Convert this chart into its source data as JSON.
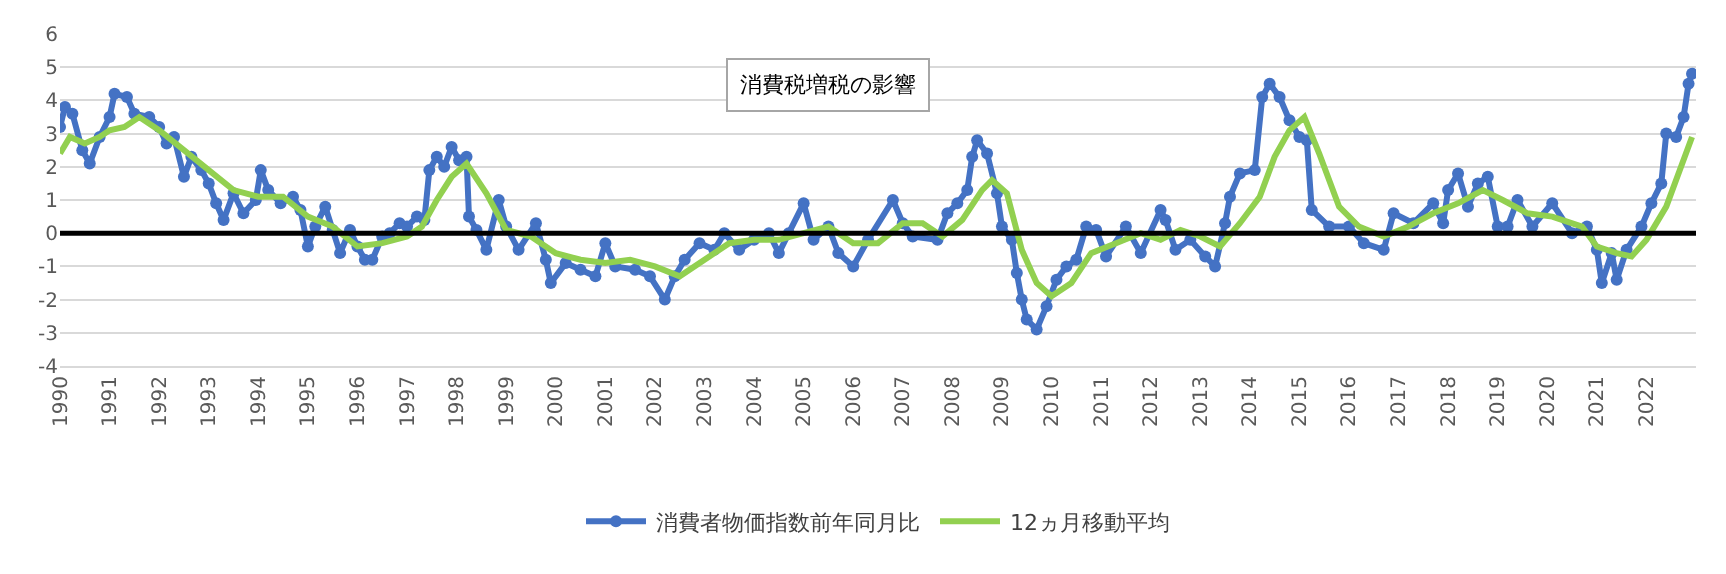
{
  "chart_data": {
    "type": "line",
    "annotations": [
      "消費税増税の影響"
    ],
    "xlim": [
      1990,
      2023
    ],
    "xticks": [
      1990,
      1991,
      1992,
      1993,
      1994,
      1995,
      1996,
      1997,
      1998,
      1999,
      2000,
      2001,
      2002,
      2003,
      2004,
      2005,
      2006,
      2007,
      2008,
      2009,
      2010,
      2011,
      2012,
      2013,
      2014,
      2015,
      2016,
      2017,
      2018,
      2019,
      2020,
      2021,
      2022
    ],
    "ylim": [
      -4,
      6
    ],
    "yticks": [
      -4,
      -3,
      -2,
      -1,
      0,
      1,
      2,
      3,
      4,
      5,
      6
    ],
    "grid": "y",
    "legend": "bottom",
    "ref_lines": [
      {
        "axis": "y",
        "value": 0,
        "color": "#000000"
      }
    ],
    "series": [
      {
        "name": "消費者物価指数前年同月比",
        "color": "#4472c4",
        "marker": "circle",
        "x": [
          1990.0,
          1990.1,
          1990.25,
          1990.45,
          1990.6,
          1990.8,
          1991.0,
          1991.1,
          1991.35,
          1991.5,
          1991.8,
          1992.0,
          1992.15,
          1992.3,
          1992.5,
          1992.65,
          1992.85,
          1993.0,
          1993.15,
          1993.3,
          1993.5,
          1993.7,
          1993.95,
          1994.05,
          1994.2,
          1994.45,
          1994.7,
          1994.85,
          1995.0,
          1995.15,
          1995.35,
          1995.5,
          1995.65,
          1995.85,
          1996.0,
          1996.15,
          1996.3,
          1996.5,
          1996.65,
          1996.85,
          1997.0,
          1997.2,
          1997.35,
          1997.45,
          1997.6,
          1997.75,
          1997.9,
          1998.05,
          1998.2,
          1998.25,
          1998.4,
          1998.6,
          1998.85,
          1999.0,
          1999.25,
          1999.6,
          1999.8,
          1999.9,
          2000.2,
          2000.5,
          2000.8,
          2001.0,
          2001.2,
          2001.6,
          2001.9,
          2002.2,
          2002.4,
          2002.6,
          2002.9,
          2003.2,
          2003.4,
          2003.7,
          2004.0,
          2004.3,
          2004.5,
          2004.7,
          2005.0,
          2005.2,
          2005.5,
          2005.7,
          2006.0,
          2006.3,
          2006.8,
          2007.0,
          2007.2,
          2007.7,
          2007.9,
          2008.1,
          2008.3,
          2008.4,
          2008.5,
          2008.7,
          2008.9,
          2009.0,
          2009.2,
          2009.3,
          2009.4,
          2009.5,
          2009.7,
          2009.9,
          2010.1,
          2010.3,
          2010.5,
          2010.7,
          2010.9,
          2011.1,
          2011.5,
          2011.8,
          2012.2,
          2012.3,
          2012.5,
          2012.8,
          2013.1,
          2013.3,
          2013.5,
          2013.6,
          2013.8,
          2014.1,
          2014.25,
          2014.4,
          2014.6,
          2014.8,
          2015.0,
          2015.15,
          2015.25,
          2015.6,
          2016.0,
          2016.3,
          2016.7,
          2016.9,
          2017.3,
          2017.7,
          2017.9,
          2018.0,
          2018.2,
          2018.4,
          2018.6,
          2018.8,
          2019.0,
          2019.2,
          2019.4,
          2019.7,
          2020.1,
          2020.5,
          2020.8,
          2021.0,
          2021.1,
          2021.3,
          2021.4,
          2021.6,
          2021.9,
          2022.1,
          2022.3,
          2022.4,
          2022.6,
          2022.75,
          2022.85,
          2022.92
        ],
        "values": [
          3.2,
          3.8,
          3.6,
          2.5,
          2.1,
          2.9,
          3.5,
          4.2,
          4.1,
          3.6,
          3.5,
          3.2,
          2.7,
          2.9,
          1.7,
          2.3,
          1.9,
          1.5,
          0.9,
          0.4,
          1.2,
          0.6,
          1.0,
          1.9,
          1.3,
          0.9,
          1.1,
          0.7,
          -0.4,
          0.2,
          0.8,
          0.1,
          -0.6,
          0.1,
          -0.4,
          -0.8,
          -0.8,
          -0.1,
          0.0,
          0.3,
          0.2,
          0.5,
          0.4,
          1.9,
          2.3,
          2.0,
          2.6,
          2.2,
          2.3,
          0.5,
          0.1,
          -0.5,
          1.0,
          0.2,
          -0.5,
          0.3,
          -0.8,
          -1.5,
          -0.9,
          -1.1,
          -1.3,
          -0.3,
          -1.0,
          -1.1,
          -1.3,
          -2.0,
          -1.3,
          -0.8,
          -0.3,
          -0.5,
          0.0,
          -0.5,
          -0.2,
          0.0,
          -0.6,
          0.0,
          0.9,
          -0.2,
          0.2,
          -0.6,
          -1.0,
          -0.2,
          1.0,
          0.3,
          -0.1,
          -0.2,
          0.6,
          0.9,
          1.3,
          2.3,
          2.8,
          2.4,
          1.2,
          0.2,
          -0.2,
          -1.2,
          -2.0,
          -2.6,
          -2.9,
          -2.2,
          -1.4,
          -1.0,
          -0.8,
          0.2,
          0.1,
          -0.7,
          0.2,
          -0.6,
          0.7,
          0.4,
          -0.5,
          -0.2,
          -0.7,
          -1.0,
          0.3,
          1.1,
          1.8,
          1.9,
          4.1,
          4.5,
          4.1,
          3.4,
          2.9,
          2.8,
          0.7,
          0.2,
          0.2,
          -0.3,
          -0.5,
          0.6,
          0.3,
          0.9,
          0.3,
          1.3,
          1.8,
          0.8,
          1.5,
          1.7,
          0.2,
          0.2,
          1.0,
          0.2,
          0.9,
          0.0,
          0.2,
          -0.5,
          -1.5,
          -0.6,
          -1.4,
          -0.5,
          0.2,
          0.9,
          1.5,
          3.0,
          2.9,
          3.5,
          4.5,
          4.8
        ]
      },
      {
        "name": "12ヵ月移動平均",
        "color": "#92d050",
        "marker": "none",
        "x": [
          1990.0,
          1990.2,
          1990.5,
          1990.8,
          1991.0,
          1991.3,
          1991.6,
          1992.0,
          1992.5,
          1993.0,
          1993.5,
          1994.0,
          1994.5,
          1995.0,
          1995.5,
          1996.0,
          1996.5,
          1997.0,
          1997.3,
          1997.6,
          1997.9,
          1998.2,
          1998.6,
          1999.0,
          1999.5,
          2000.0,
          2000.5,
          2001.0,
          2001.5,
          2002.0,
          2002.5,
          2003.0,
          2003.5,
          2004.0,
          2004.5,
          2005.0,
          2005.5,
          2006.0,
          2006.5,
          2007.0,
          2007.4,
          2007.8,
          2008.2,
          2008.6,
          2008.8,
          2009.1,
          2009.4,
          2009.7,
          2010.0,
          2010.4,
          2010.8,
          2011.3,
          2011.8,
          2012.2,
          2012.6,
          2013.0,
          2013.4,
          2013.8,
          2014.2,
          2014.5,
          2014.8,
          2015.1,
          2015.4,
          2015.8,
          2016.2,
          2016.7,
          2017.2,
          2017.7,
          2018.2,
          2018.7,
          2019.1,
          2019.6,
          2020.1,
          2020.7,
          2021.0,
          2021.4,
          2021.7,
          2022.0,
          2022.4,
          2022.92
        ],
        "values": [
          2.4,
          2.9,
          2.7,
          2.9,
          3.1,
          3.2,
          3.5,
          3.1,
          2.5,
          1.9,
          1.3,
          1.1,
          1.1,
          0.5,
          0.2,
          -0.4,
          -0.3,
          -0.1,
          0.2,
          1.0,
          1.7,
          2.1,
          1.2,
          0.1,
          -0.1,
          -0.6,
          -0.8,
          -0.9,
          -0.8,
          -1.0,
          -1.3,
          -0.8,
          -0.3,
          -0.2,
          -0.2,
          0.0,
          0.2,
          -0.3,
          -0.3,
          0.3,
          0.3,
          -0.1,
          0.4,
          1.3,
          1.6,
          1.2,
          -0.5,
          -1.5,
          -1.9,
          -1.5,
          -0.6,
          -0.3,
          0.0,
          -0.2,
          0.1,
          -0.1,
          -0.4,
          0.3,
          1.1,
          2.3,
          3.1,
          3.5,
          2.4,
          0.8,
          0.2,
          -0.1,
          0.2,
          0.6,
          0.9,
          1.3,
          1.0,
          0.6,
          0.5,
          0.2,
          -0.4,
          -0.6,
          -0.7,
          -0.2,
          0.8,
          2.9
        ]
      }
    ]
  }
}
